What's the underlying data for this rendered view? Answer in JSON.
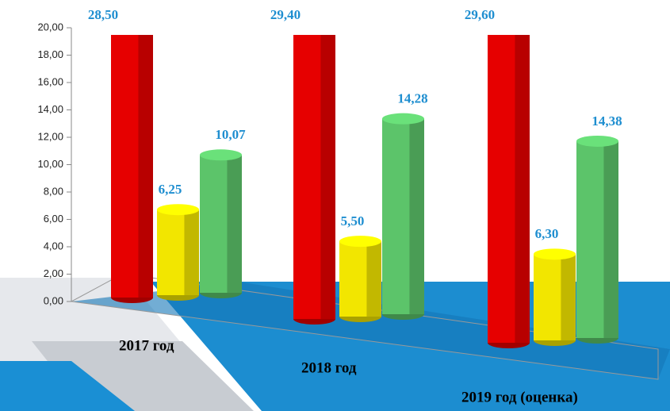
{
  "chart_data": {
    "type": "bar3d",
    "categories": [
      "2017 год",
      "2018 год",
      "2019 год (оценка)"
    ],
    "series": [
      {
        "color": "#e60000",
        "values": [
          28.5,
          29.4,
          29.6
        ],
        "value_labels": [
          "28,50",
          "29,40",
          "29,60"
        ]
      },
      {
        "color": "#f2e600",
        "values": [
          6.25,
          5.5,
          6.3
        ],
        "value_labels": [
          "6,25",
          "5,50",
          "6,30"
        ]
      },
      {
        "color": "#5cc46a",
        "values": [
          10.07,
          14.28,
          14.38
        ],
        "value_labels": [
          "10,07",
          "14,28",
          "14,38"
        ]
      }
    ],
    "ylim": [
      0,
      20
    ],
    "yticks": [
      {
        "value": 0,
        "label": "0,00"
      },
      {
        "value": 2,
        "label": "2,00"
      },
      {
        "value": 4,
        "label": "4,00"
      },
      {
        "value": 6,
        "label": "6,00"
      },
      {
        "value": 8,
        "label": "8,00"
      },
      {
        "value": 10,
        "label": "10,00"
      },
      {
        "value": 12,
        "label": "12,00"
      },
      {
        "value": 14,
        "label": "14,00"
      },
      {
        "value": 16,
        "label": "16,00"
      },
      {
        "value": 18,
        "label": "18,00"
      },
      {
        "value": 20,
        "label": "20,00"
      }
    ]
  }
}
